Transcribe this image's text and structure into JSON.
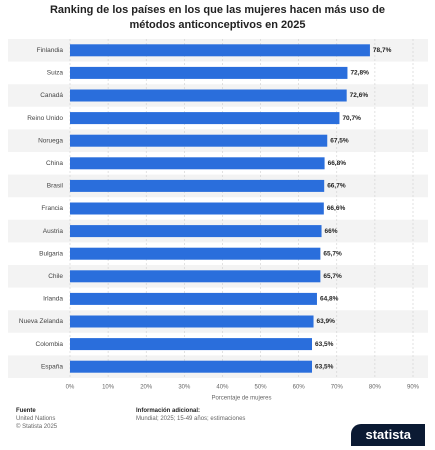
{
  "chart_data": {
    "type": "hbar",
    "title": "Ranking de los países en los que las mujeres hacen más uso de métodos anticonceptivos en 2025",
    "categories": [
      "Finlandia",
      "Suiza",
      "Canadá",
      "Reino Unido",
      "Noruega",
      "China",
      "Brasil",
      "Francia",
      "Austria",
      "Bulgaria",
      "Chile",
      "Irlanda",
      "Nueva Zelanda",
      "Colombia",
      "España"
    ],
    "values": [
      78.7,
      72.8,
      72.6,
      70.7,
      67.5,
      66.8,
      66.7,
      66.6,
      66,
      65.7,
      65.7,
      64.8,
      63.9,
      63.5,
      63.5
    ],
    "value_labels": [
      "78,7%",
      "72,8%",
      "72,6%",
      "70,7%",
      "67,5%",
      "66,8%",
      "66,7%",
      "66,6%",
      "66%",
      "65,7%",
      "65,7%",
      "64,8%",
      "63,9%",
      "63,5%",
      "63,5%"
    ],
    "color": "#2a6edc",
    "xlabel": "Porcentaje de mujeres",
    "xlim": [
      0,
      90
    ],
    "xticks": [
      {
        "value": 0,
        "label": "0%"
      },
      {
        "value": 10,
        "label": "10%"
      },
      {
        "value": 20,
        "label": "20%"
      },
      {
        "value": 30,
        "label": "30%"
      },
      {
        "value": 40,
        "label": "40%"
      },
      {
        "value": 50,
        "label": "50%"
      },
      {
        "value": 60,
        "label": "60%"
      },
      {
        "value": 70,
        "label": "70%"
      },
      {
        "value": 80,
        "label": "80%"
      },
      {
        "value": 90,
        "label": "90%"
      }
    ],
    "grid": true
  },
  "footer": {
    "source_title": "Fuente",
    "source": "United Nations",
    "copyright": "© Statista 2025",
    "info_title": "Información adicional:",
    "info": "Mundial; 2025; 15-49 años; estimaciones",
    "logo": "statista"
  }
}
